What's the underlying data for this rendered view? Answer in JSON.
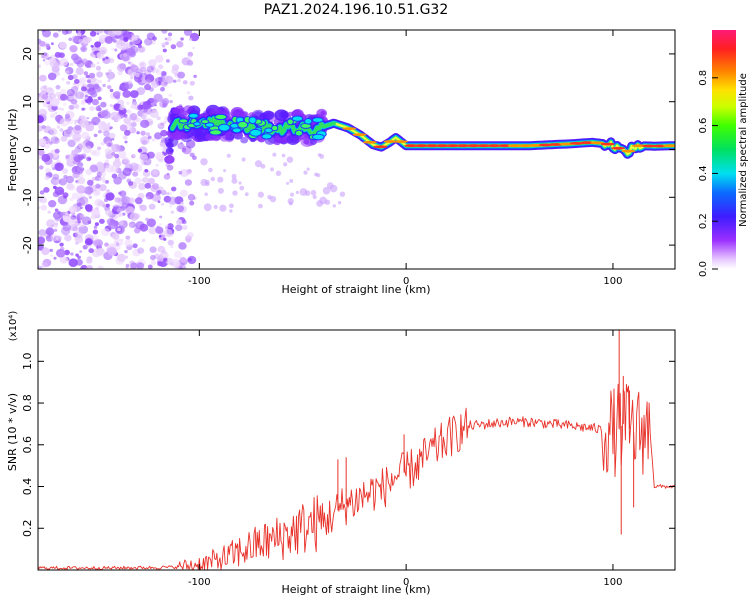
{
  "title": "PAZ1.2024.196.10.51.G32",
  "chart_data": [
    {
      "type": "heatmap",
      "xlabel": "Height of straight line (km)",
      "ylabel": "Frequency (Hz)",
      "xlim": [
        -178,
        130
      ],
      "ylim": [
        -25,
        25
      ],
      "x_ticks": [
        -100,
        0,
        100
      ],
      "x_tick_labels": [
        "-100",
        "0",
        "100"
      ],
      "y_ticks": [
        -20,
        -10,
        0,
        10,
        20
      ],
      "y_tick_labels": [
        "-20",
        "-10",
        "0",
        "10",
        "20"
      ],
      "grid": false,
      "colorbar": {
        "label": "Normalized spectral amplitude",
        "range": [
          0,
          1
        ],
        "ticks": [
          0.0,
          0.2,
          0.4,
          0.6,
          0.8
        ],
        "tick_labels": [
          "0.0",
          "0.2",
          "0.4",
          "0.6",
          "0.8"
        ],
        "colormap": "rainbow (white-violet-blue-cyan-green-yellow-orange-red-pink)"
      },
      "series": [
        {
          "role": "peak frequency ridge",
          "x": [
            -113,
            -105,
            -98,
            -90,
            -80,
            -70,
            -60,
            -50,
            -42,
            -35,
            -28,
            -22,
            -16,
            -12,
            -8,
            -5,
            0,
            10,
            30,
            60,
            80,
            90,
            100,
            105,
            108,
            112,
            120,
            130
          ],
          "y": [
            5.5,
            5.5,
            5,
            5.5,
            5,
            4.5,
            4.5,
            4.5,
            4.5,
            5.5,
            4.5,
            3,
            1,
            0.5,
            1.5,
            2.5,
            0.8,
            0.8,
            0.8,
            0.8,
            1.2,
            1.5,
            1,
            -0.5,
            -0.3,
            0.8,
            0.7,
            0.8
          ]
        }
      ],
      "regions": [
        {
          "role": "diffuse noise",
          "x_range": [
            -178,
            -102
          ],
          "y_range": [
            -25,
            25
          ]
        },
        {
          "role": "blobby emission",
          "x_range": [
            -115,
            -40
          ],
          "y_range": [
            -2,
            10
          ]
        }
      ]
    },
    {
      "type": "line",
      "xlabel": "Height of straight line (km)",
      "ylabel": "SNR (10 * v/v)",
      "y_multiplier": "(x10⁴)",
      "xlim": [
        -178,
        130
      ],
      "ylim": [
        0,
        1.15
      ],
      "x_ticks": [
        -100,
        0,
        100
      ],
      "x_tick_labels": [
        "-100",
        "0",
        "100"
      ],
      "y_ticks": [
        0.2,
        0.4,
        0.6,
        0.8,
        1.0
      ],
      "y_tick_labels": [
        "0.2",
        "0.4",
        "0.6",
        "0.8",
        "1.0"
      ],
      "grid": false,
      "series": [
        {
          "color": "#e8322a",
          "x": [
            -178,
            -160,
            -140,
            -120,
            -110,
            -100,
            -95,
            -90,
            -85,
            -80,
            -75,
            -70,
            -65,
            -60,
            -55,
            -50,
            -45,
            -40,
            -35,
            -30,
            -25,
            -20,
            -15,
            -10,
            -5,
            0,
            5,
            10,
            15,
            20,
            25,
            30,
            40,
            50,
            60,
            70,
            80,
            90,
            95,
            100,
            103,
            105,
            110,
            115,
            118,
            120,
            125,
            130
          ],
          "y": [
            0.01,
            0.01,
            0.01,
            0.012,
            0.015,
            0.025,
            0.035,
            0.05,
            0.065,
            0.09,
            0.11,
            0.13,
            0.14,
            0.16,
            0.18,
            0.2,
            0.22,
            0.23,
            0.27,
            0.31,
            0.33,
            0.36,
            0.38,
            0.4,
            0.45,
            0.47,
            0.5,
            0.55,
            0.59,
            0.63,
            0.66,
            0.69,
            0.7,
            0.71,
            0.71,
            0.7,
            0.69,
            0.68,
            0.67,
            0.66,
            0.68,
            0.7,
            0.66,
            0.67,
            0.66,
            0.4,
            0.4,
            0.4
          ],
          "spikes": [
            {
              "x": -33,
              "y": 0.53
            },
            {
              "x": -29,
              "y": 0.54
            },
            {
              "x": -1,
              "y": 0.65
            },
            {
              "x": 103,
              "y": 1.15
            },
            {
              "x": 105,
              "y": 0.93
            },
            {
              "x": 108,
              "y": 0.86
            },
            {
              "x": 110,
              "y": 0.3
            },
            {
              "x": 104,
              "y": 0.17
            }
          ]
        }
      ]
    }
  ]
}
